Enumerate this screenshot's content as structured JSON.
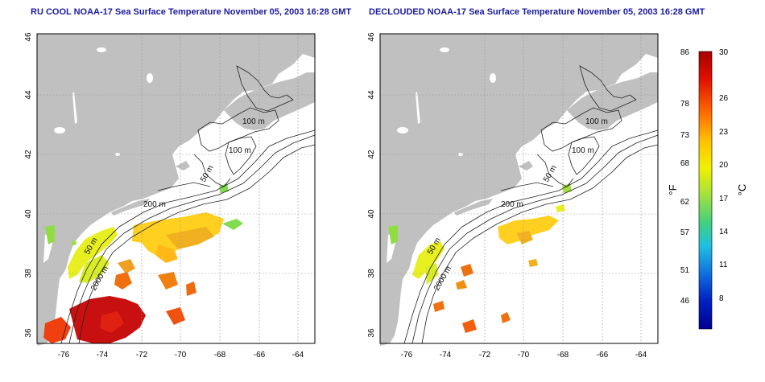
{
  "left_panel": {
    "title": "RU COOL NOAA-17 Sea Surface Temperature November 05, 2003 16:28 GMT"
  },
  "right_panel": {
    "title": "DECLOUDED NOAA-17 Sea Surface Temperature November 05, 2003 16:28 GMT"
  },
  "map": {
    "longitude_ticks": [
      "-76",
      "-74",
      "-72",
      "-70",
      "-68",
      "-66",
      "-64"
    ],
    "latitude_ticks": [
      "36",
      "38",
      "40",
      "42",
      "44",
      "46"
    ],
    "contour_labels": [
      "100 m",
      "100 m",
      "50 m",
      "200 m",
      "50 m",
      "2000 m"
    ],
    "land_color": "#c0c0c0",
    "ocean_color": "#ffffff"
  },
  "colorbar": {
    "fahrenheit_label": "°F",
    "celsius_label": "°C",
    "fahrenheit_ticks": [
      "86",
      "78",
      "73",
      "68",
      "62",
      "57",
      "51",
      "46"
    ],
    "celsius_ticks": [
      "30",
      "26",
      "23",
      "20",
      "17",
      "14",
      "11",
      "8"
    ],
    "gradient_colors": [
      "#a80000",
      "#e01000",
      "#ff6a00",
      "#ffc000",
      "#f0f000",
      "#a0e040",
      "#40d080",
      "#20c0e0",
      "#1070e0",
      "#0020c0",
      "#000090"
    ]
  }
}
